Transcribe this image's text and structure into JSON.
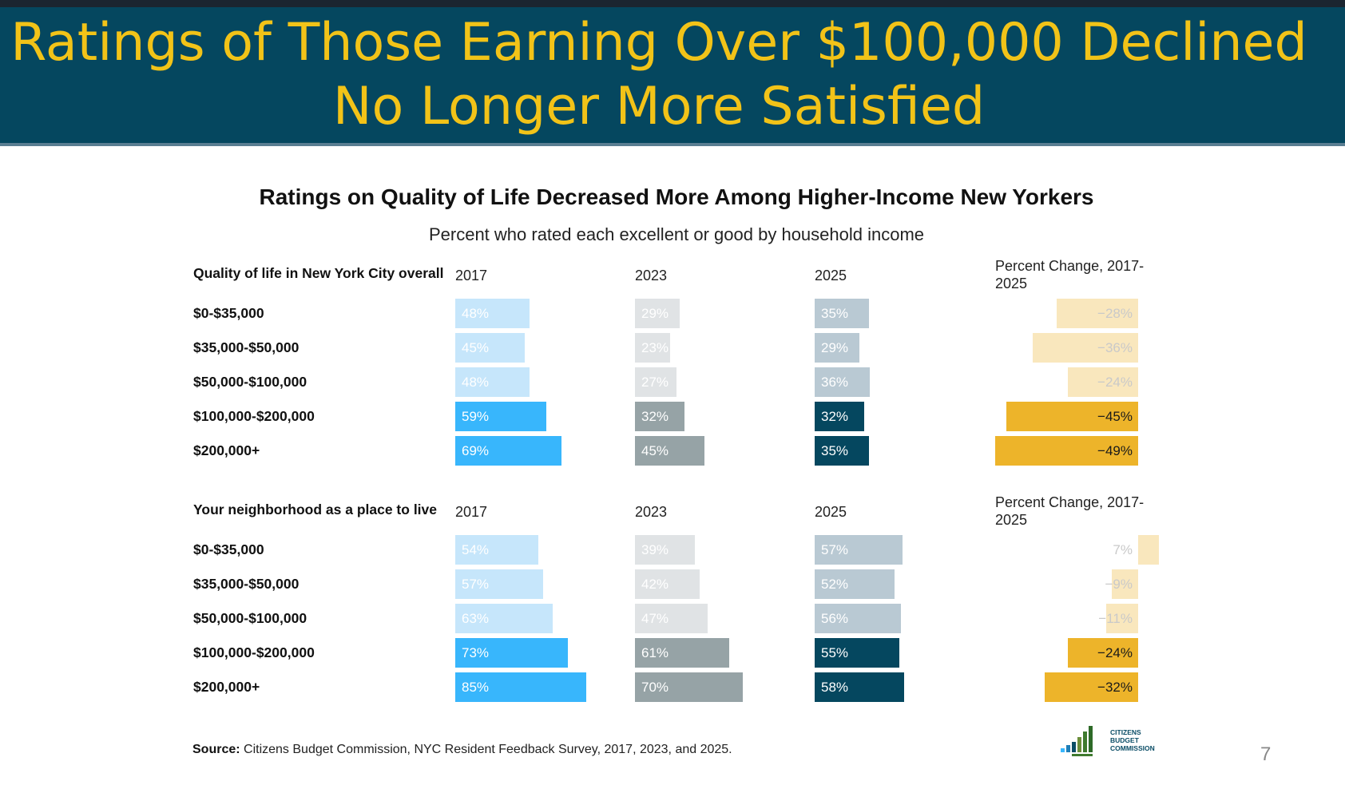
{
  "slide": {
    "title_line1": "Ratings of Those Earning Over $100,000 Declined",
    "title_line2": "No Longer More Satisfied",
    "page_number": "7"
  },
  "chart_data": {
    "type": "bar",
    "orientation": "horizontal",
    "title": "Ratings on Quality of Life Decreased More Among Higher-Income New Yorkers",
    "subtitle": "Percent who rated each excellent or good by household income",
    "column_headers": [
      "2017",
      "2023",
      "2025"
    ],
    "change_header": "Percent Change, 2017-2025",
    "categories": [
      "$0-$35,000",
      "$35,000-$50,000",
      "$50,000-$100,000",
      "$100,000-$200,000",
      "$200,000+"
    ],
    "panels": [
      {
        "label": "Quality of life in New York City overall",
        "series": [
          {
            "name": "2017",
            "values": [
              48,
              45,
              48,
              59,
              69
            ],
            "labels": [
              "48%",
              "45%",
              "48%",
              "59%",
              "69%"
            ]
          },
          {
            "name": "2023",
            "values": [
              29,
              23,
              27,
              32,
              45
            ],
            "labels": [
              "29%",
              "23%",
              "27%",
              "32%",
              "45%"
            ]
          },
          {
            "name": "2025",
            "values": [
              35,
              29,
              36,
              32,
              35
            ],
            "labels": [
              "35%",
              "29%",
              "36%",
              "32%",
              "35%"
            ]
          }
        ],
        "change": {
          "values": [
            -28,
            -36,
            -24,
            -45,
            -49
          ],
          "labels": [
            "−28%",
            "−36%",
            "−24%",
            "−45%",
            "−49%"
          ]
        }
      },
      {
        "label": "Your neighborhood as a place to live",
        "series": [
          {
            "name": "2017",
            "values": [
              54,
              57,
              63,
              73,
              85
            ],
            "labels": [
              "54%",
              "57%",
              "63%",
              "73%",
              "85%"
            ]
          },
          {
            "name": "2023",
            "values": [
              39,
              42,
              47,
              61,
              70
            ],
            "labels": [
              "39%",
              "42%",
              "47%",
              "61%",
              "70%"
            ]
          },
          {
            "name": "2025",
            "values": [
              57,
              52,
              56,
              55,
              58
            ],
            "labels": [
              "57%",
              "52%",
              "56%",
              "55%",
              "58%"
            ]
          }
        ],
        "change": {
          "values": [
            7,
            -9,
            -11,
            -24,
            -32
          ],
          "labels": [
            "7%",
            "−9%",
            "−11%",
            "−24%",
            "−32%"
          ]
        }
      }
    ],
    "highlighted_categories": [
      "$100,000-$200,000",
      "$200,000+"
    ],
    "colors": {
      "y2017_light": "#c6e6fb",
      "y2017_dark": "#38b6fc",
      "y2023_light": "#e0e3e5",
      "y2023_dark": "#96a3a6",
      "y2025_light": "#b9c9d3",
      "y2025_dark": "#05475f",
      "change_light": "#f9e7bd",
      "change_dark": "#edb42a",
      "label_light": "#ffffff",
      "label_dark": "#ffffff"
    },
    "source_label": "Source:",
    "source_text": " Citizens Budget Commission, NYC Resident Feedback Survey, 2017, 2023, and 2025."
  },
  "logo": {
    "line1": "CITIZENS",
    "line2": "BUDGET",
    "line3": "COMMISSION"
  }
}
